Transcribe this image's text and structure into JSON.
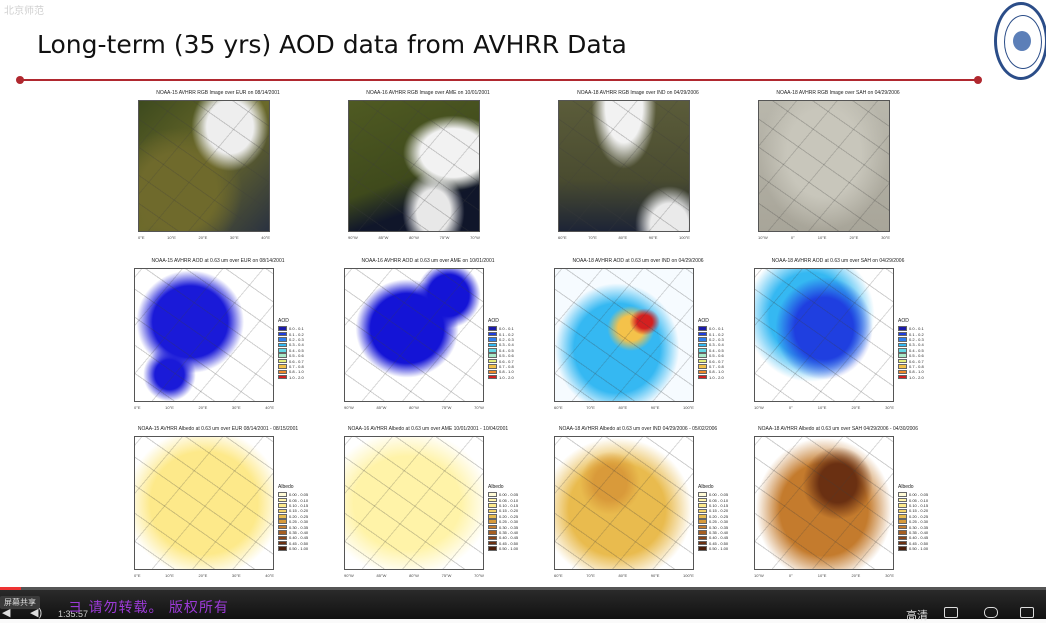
{
  "slide": {
    "title": "Long-term (35 yrs) AOD data from AVHRR Data",
    "corner_text": "北京师范",
    "colors": {
      "rule": "#b0282f",
      "title": "#111111"
    }
  },
  "panels": [
    {
      "row": 0,
      "col": 0,
      "title": "NOAA-15 AVHRR RGB Image over EUR on 08/14/2001",
      "kind": "rgb-eur",
      "xticks": [
        "0°E",
        "10°E",
        "20°E",
        "30°E",
        "40°E"
      ]
    },
    {
      "row": 0,
      "col": 1,
      "title": "NOAA-16 AVHRR RGB Image over AME on 10/01/2001",
      "kind": "rgb-ame",
      "xticks": [
        "90°W",
        "85°W",
        "80°W",
        "75°W",
        "70°W"
      ]
    },
    {
      "row": 0,
      "col": 2,
      "title": "NOAA-18 AVHRR RGB Image over IND on 04/29/2006",
      "kind": "rgb-ind",
      "xticks": [
        "60°E",
        "70°E",
        "80°E",
        "90°E",
        "100°E"
      ]
    },
    {
      "row": 0,
      "col": 3,
      "title": "NOAA-18 AVHRR RGB Image over SAH on 04/29/2006",
      "kind": "rgb-sah",
      "xticks": [
        "10°W",
        "0°",
        "10°E",
        "20°E",
        "30°E"
      ]
    },
    {
      "row": 1,
      "col": 0,
      "title": "NOAA-15 AVHRR AOD at 0.63 um over EUR on 08/14/2001",
      "kind": "aod-eur",
      "xticks": [
        "0°E",
        "10°E",
        "20°E",
        "30°E",
        "40°E"
      ]
    },
    {
      "row": 1,
      "col": 1,
      "title": "NOAA-16 AVHRR AOD at 0.63 um over AME on 10/01/2001",
      "kind": "aod-ame",
      "xticks": [
        "90°W",
        "85°W",
        "80°W",
        "75°W",
        "70°W"
      ]
    },
    {
      "row": 1,
      "col": 2,
      "title": "NOAA-18 AVHRR AOD at 0.63 um over IND on 04/29/2006",
      "kind": "aod-ind",
      "xticks": [
        "60°E",
        "70°E",
        "80°E",
        "90°E",
        "100°E"
      ]
    },
    {
      "row": 1,
      "col": 3,
      "title": "NOAA-18 AVHRR AOD at 0.63 um over SAH on 04/29/2006",
      "kind": "aod-sah",
      "xticks": [
        "10°W",
        "0°",
        "10°E",
        "20°E",
        "30°E"
      ]
    },
    {
      "row": 2,
      "col": 0,
      "title": "NOAA-15 AVHRR Albedo at 0.63 um over EUR 08/14/2001 - 08/15/2001",
      "kind": "alb-eur",
      "xticks": [
        "0°E",
        "10°E",
        "20°E",
        "30°E",
        "40°E"
      ]
    },
    {
      "row": 2,
      "col": 1,
      "title": "NOAA-16 AVHRR Albedo at 0.63 um over AME 10/01/2001 - 10/04/2001",
      "kind": "alb-ame",
      "xticks": [
        "90°W",
        "85°W",
        "80°W",
        "75°W",
        "70°W"
      ]
    },
    {
      "row": 2,
      "col": 2,
      "title": "NOAA-18 AVHRR Albedo at 0.63 um over IND 04/29/2006 - 05/02/2006",
      "kind": "alb-ind",
      "xticks": [
        "60°E",
        "70°E",
        "80°E",
        "90°E",
        "100°E"
      ]
    },
    {
      "row": 2,
      "col": 3,
      "title": "NOAA-18 AVHRR Albedo at 0.63 um over SAH 04/29/2006 - 04/30/2006",
      "kind": "alb-sah",
      "xticks": [
        "10°W",
        "0°",
        "10°E",
        "20°E",
        "30°E"
      ]
    }
  ],
  "aod_legend": {
    "title": "AOD",
    "items": [
      {
        "label": "0.0 - 0.1",
        "color": "#1a1aa8"
      },
      {
        "label": "0.1 - 0.2",
        "color": "#1f3fe0"
      },
      {
        "label": "0.2 - 0.3",
        "color": "#2f7ff0"
      },
      {
        "label": "0.3 - 0.4",
        "color": "#35b8f2"
      },
      {
        "label": "0.4 - 0.5",
        "color": "#62d9e6"
      },
      {
        "label": "0.5 - 0.6",
        "color": "#a8eac8"
      },
      {
        "label": "0.6 - 0.7",
        "color": "#e7ef7a"
      },
      {
        "label": "0.7 - 0.8",
        "color": "#f4c24a"
      },
      {
        "label": "0.8 - 1.0",
        "color": "#f08a2a"
      },
      {
        "label": "1.0 - 2.0",
        "color": "#d42020"
      }
    ]
  },
  "albedo_legend": {
    "title": "Albedo",
    "items": [
      {
        "label": "0.00 - 0.05",
        "color": "#fffbd6"
      },
      {
        "label": "0.05 - 0.10",
        "color": "#fff3a8"
      },
      {
        "label": "0.10 - 0.15",
        "color": "#fde98a"
      },
      {
        "label": "0.15 - 0.20",
        "color": "#f5d56a"
      },
      {
        "label": "0.20 - 0.25",
        "color": "#e9bb4e"
      },
      {
        "label": "0.25 - 0.30",
        "color": "#d99a3a"
      },
      {
        "label": "0.30 - 0.35",
        "color": "#c47b2d"
      },
      {
        "label": "0.35 - 0.40",
        "color": "#a65f22"
      },
      {
        "label": "0.40 - 0.45",
        "color": "#884519"
      },
      {
        "label": "0.45 - 0.50",
        "color": "#6a3012"
      },
      {
        "label": "0.50 - 1.00",
        "color": "#4a1d0a"
      }
    ]
  },
  "player": {
    "share_label": "屏幕共享",
    "time": "1:35:57",
    "banner": "ヨ  请勿转载。  版权所有",
    "quality_label": "高清",
    "progress": 0.02,
    "icons": [
      "play-icon",
      "volume-icon",
      "fullscreen-window-icon",
      "danmaku-icon",
      "fullscreen-icon"
    ]
  }
}
